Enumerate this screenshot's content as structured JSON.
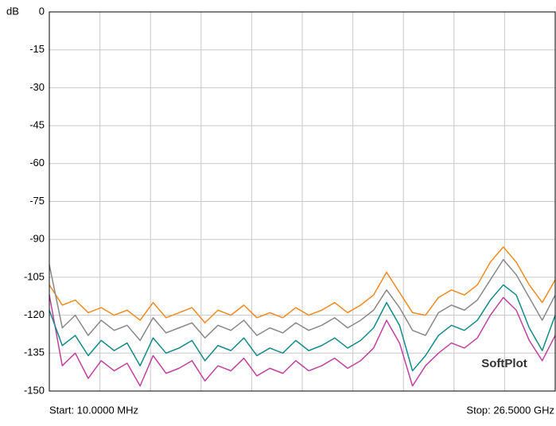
{
  "chart_data": {
    "type": "line",
    "y_unit": "dB",
    "start_label": "Start: 10.0000 MHz",
    "stop_label": "Stop: 26.5000 GHz",
    "watermark": "SoftPlot",
    "ylim": [
      -150,
      0
    ],
    "yticks": [
      0,
      -15,
      -30,
      -45,
      -60,
      -75,
      -90,
      -105,
      -120,
      -135,
      -150
    ],
    "x_divisions": 10,
    "grid": true,
    "series": [
      {
        "color": "#c040a0",
        "values": [
          -112,
          -140,
          -135,
          -145,
          -138,
          -142,
          -139,
          -148,
          -136,
          -143,
          -141,
          -138,
          -146,
          -140,
          -142,
          -137,
          -144,
          -141,
          -143,
          -138,
          -142,
          -140,
          -137,
          -141,
          -138,
          -133,
          -122,
          -131,
          -148,
          -140,
          -135,
          -131,
          -133,
          -129,
          -120,
          -113,
          -118,
          -130,
          -138,
          -128
        ]
      },
      {
        "color": "#108a8a",
        "values": [
          -118,
          -132,
          -128,
          -136,
          -130,
          -134,
          -131,
          -140,
          -129,
          -135,
          -133,
          -130,
          -138,
          -132,
          -134,
          -129,
          -136,
          -133,
          -135,
          -130,
          -134,
          -132,
          -129,
          -133,
          -130,
          -125,
          -115,
          -124,
          -142,
          -136,
          -128,
          -124,
          -126,
          -122,
          -114,
          -108,
          -112,
          -125,
          -134,
          -120
        ]
      },
      {
        "color": "#f08a20",
        "values": [
          -108,
          -116,
          -114,
          -119,
          -117,
          -120,
          -118,
          -122,
          -115,
          -121,
          -119,
          -117,
          -123,
          -118,
          -120,
          -116,
          -121,
          -119,
          -121,
          -117,
          -120,
          -118,
          -115,
          -119,
          -116,
          -112,
          -103,
          -111,
          -119,
          -120,
          -113,
          -110,
          -112,
          -108,
          -99,
          -93,
          -99,
          -108,
          -115,
          -106
        ]
      },
      {
        "color": "#888888",
        "values": [
          -100,
          -125,
          -120,
          -128,
          -122,
          -126,
          -124,
          -130,
          -121,
          -127,
          -125,
          -123,
          -129,
          -124,
          -126,
          -122,
          -128,
          -125,
          -127,
          -123,
          -126,
          -124,
          -121,
          -125,
          -122,
          -118,
          -110,
          -117,
          -126,
          -128,
          -119,
          -116,
          -118,
          -114,
          -106,
          -98,
          -104,
          -113,
          -122,
          -112
        ]
      }
    ]
  }
}
